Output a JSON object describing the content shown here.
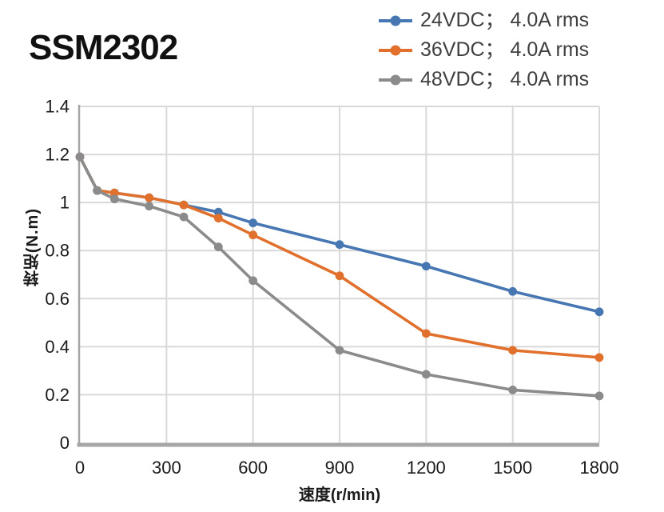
{
  "title": "SSM2302",
  "legend": {
    "items": [
      {
        "label": "24VDC； 4.0A rms"
      },
      {
        "label": "36VDC； 4.0A rms"
      },
      {
        "label": "48VDC； 4.0A rms"
      }
    ]
  },
  "chart_data": {
    "type": "line",
    "title": "SSM2302",
    "xlabel": "速度(r/min)",
    "ylabel": "转矩(N.m)",
    "xlim": [
      0,
      1800
    ],
    "ylim": [
      0,
      1.4
    ],
    "xticks": [
      0,
      300,
      600,
      900,
      1200,
      1500,
      1800
    ],
    "xtick_labels": [
      "0",
      "300",
      "600",
      "900",
      "1200",
      "1500",
      "1800"
    ],
    "yticks": [
      0,
      0.2,
      0.4,
      0.6,
      0.8,
      1,
      1.2,
      1.4
    ],
    "ytick_labels": [
      "0",
      "0.2",
      "0.4",
      "0.6",
      "0.8",
      "1",
      "1.2",
      "1.4"
    ],
    "grid": true,
    "legend_position": "top-right",
    "marker": "circle",
    "x": [
      0,
      60,
      120,
      240,
      360,
      480,
      600,
      900,
      1200,
      1500,
      1800
    ],
    "series": [
      {
        "name": "24VDC； 4.0A rms",
        "id": "24vdc",
        "color": "#4777b3",
        "values": [
          1.19,
          1.05,
          1.04,
          1.02,
          0.99,
          0.96,
          0.915,
          0.825,
          0.735,
          0.63,
          0.545
        ]
      },
      {
        "name": "36VDC； 4.0A rms",
        "id": "36vdc",
        "color": "#e0702c",
        "values": [
          1.19,
          1.05,
          1.04,
          1.02,
          0.99,
          0.935,
          0.865,
          0.695,
          0.455,
          0.385,
          0.355
        ]
      },
      {
        "name": "48VDC； 4.0A rms",
        "id": "48vdc",
        "color": "#8b8b8b",
        "values": [
          1.19,
          1.05,
          1.015,
          0.985,
          0.94,
          0.815,
          0.675,
          0.385,
          0.285,
          0.22,
          0.195
        ]
      }
    ]
  },
  "style": {
    "grid_color": "#d9d9d9",
    "axis_color": "#a6a6a6",
    "tick_text_color": "#1a1a1a",
    "legend_text_color": "#3f3f3f",
    "title_color": "#111111",
    "background": "#ffffff"
  }
}
